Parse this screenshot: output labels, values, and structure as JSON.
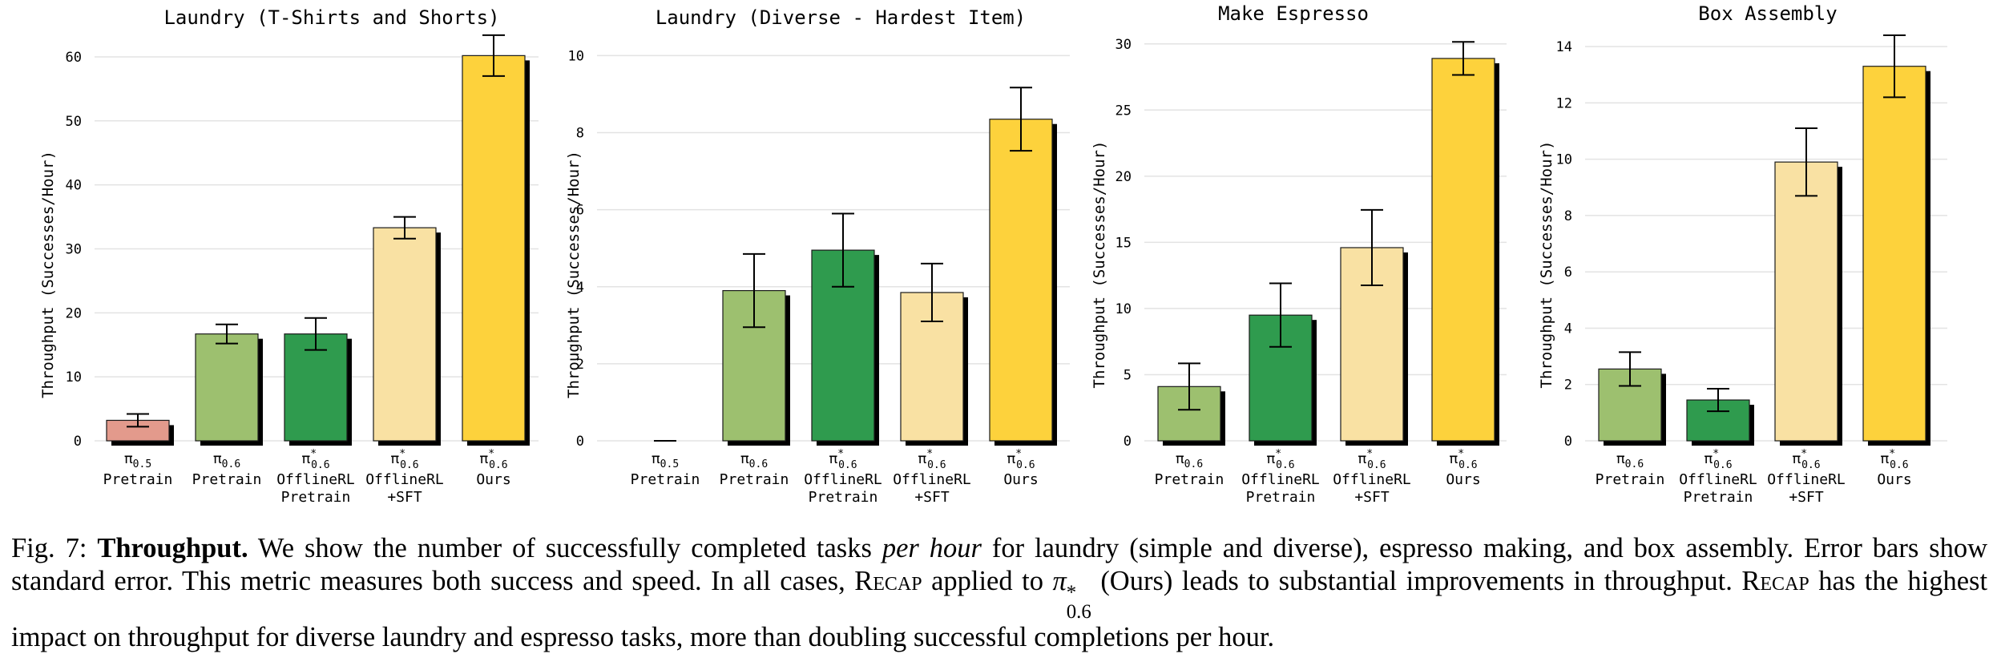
{
  "chart_data": [
    {
      "type": "bar",
      "title": "Laundry (T-Shirts and Shorts)",
      "ylabel": "Throughput (Successes/Hour)",
      "ylim": [
        0,
        62
      ],
      "yticks": [
        0,
        10,
        20,
        30,
        40,
        50,
        60
      ],
      "categories": [
        {
          "symbol": "π",
          "sub": "0.5",
          "star": false,
          "lines": [
            "Pretrain"
          ]
        },
        {
          "symbol": "π",
          "sub": "0.6",
          "star": false,
          "lines": [
            "Pretrain"
          ]
        },
        {
          "symbol": "π",
          "sub": "0.6",
          "star": true,
          "lines": [
            "OfflineRL",
            "Pretrain"
          ]
        },
        {
          "symbol": "π",
          "sub": "0.6",
          "star": true,
          "lines": [
            "OfflineRL",
            "+SFT"
          ]
        },
        {
          "symbol": "π",
          "sub": "0.6",
          "star": true,
          "lines": [
            "Ours"
          ]
        }
      ],
      "values": [
        3.2,
        16.7,
        16.7,
        33.3,
        60.2
      ],
      "errors": [
        1.0,
        1.5,
        2.5,
        1.7,
        3.2
      ],
      "colors": [
        "#e39a8c",
        "#9dc06f",
        "#2f9b4e",
        "#f9e1a3",
        "#fdd23c"
      ]
    },
    {
      "type": "bar",
      "title": "Laundry (Diverse - Hardest Item)",
      "ylabel": "Throughput (Successes/Hour)",
      "ylim": [
        0,
        10.3
      ],
      "yticks": [
        0,
        2,
        4,
        6,
        8,
        10
      ],
      "categories": [
        {
          "symbol": "π",
          "sub": "0.5",
          "star": false,
          "lines": [
            "Pretrain"
          ]
        },
        {
          "symbol": "π",
          "sub": "0.6",
          "star": false,
          "lines": [
            "Pretrain"
          ]
        },
        {
          "symbol": "π",
          "sub": "0.6",
          "star": true,
          "lines": [
            "OfflineRL",
            "Pretrain"
          ]
        },
        {
          "symbol": "π",
          "sub": "0.6",
          "star": true,
          "lines": [
            "OfflineRL",
            "+SFT"
          ]
        },
        {
          "symbol": "π",
          "sub": "0.6",
          "star": true,
          "lines": [
            "Ours"
          ]
        }
      ],
      "values": [
        0,
        3.9,
        4.95,
        3.85,
        8.35
      ],
      "errors": [
        0,
        0.95,
        0.95,
        0.75,
        0.82
      ],
      "colors": [
        "#e39a8c",
        "#9dc06f",
        "#2f9b4e",
        "#f9e1a3",
        "#fdd23c"
      ]
    },
    {
      "type": "bar",
      "title": "Make Espresso",
      "ylabel": "Throughput (Successes/Hour)",
      "ylim": [
        0,
        31.5
      ],
      "yticks": [
        0,
        5,
        10,
        15,
        20,
        25,
        30
      ],
      "categories": [
        {
          "symbol": "π",
          "sub": "0.6",
          "star": false,
          "lines": [
            "Pretrain"
          ]
        },
        {
          "symbol": "π",
          "sub": "0.6",
          "star": true,
          "lines": [
            "OfflineRL",
            "Pretrain"
          ]
        },
        {
          "symbol": "π",
          "sub": "0.6",
          "star": true,
          "lines": [
            "OfflineRL",
            "+SFT"
          ]
        },
        {
          "symbol": "π",
          "sub": "0.6",
          "star": true,
          "lines": [
            "Ours"
          ]
        }
      ],
      "values": [
        4.1,
        9.5,
        14.6,
        28.9
      ],
      "errors": [
        1.75,
        2.4,
        2.85,
        1.25
      ],
      "colors": [
        "#9dc06f",
        "#2f9b4e",
        "#f9e1a3",
        "#fdd23c"
      ]
    },
    {
      "type": "bar",
      "title": "Box Assembly",
      "ylabel": "Throughput (Successes/Hour)",
      "ylim": [
        0,
        14.8
      ],
      "yticks": [
        0,
        2,
        4,
        6,
        8,
        10,
        12,
        14
      ],
      "categories": [
        {
          "symbol": "π",
          "sub": "0.6",
          "star": false,
          "lines": [
            "Pretrain"
          ]
        },
        {
          "symbol": "π",
          "sub": "0.6",
          "star": true,
          "lines": [
            "OfflineRL",
            "Pretrain"
          ]
        },
        {
          "symbol": "π",
          "sub": "0.6",
          "star": true,
          "lines": [
            "OfflineRL",
            "+SFT"
          ]
        },
        {
          "symbol": "π",
          "sub": "0.6",
          "star": true,
          "lines": [
            "Ours"
          ]
        }
      ],
      "values": [
        2.55,
        1.45,
        9.9,
        13.3
      ],
      "errors": [
        0.6,
        0.4,
        1.2,
        1.1
      ],
      "colors": [
        "#9dc06f",
        "#2f9b4e",
        "#f9e1a3",
        "#fdd23c"
      ]
    }
  ],
  "caption": {
    "label": "Fig. 7:",
    "bold": "Throughput.",
    "text_1": "We show the number of successfully completed tasks",
    "italic": "per hour",
    "text_2": "for laundry (simple and diverse), espresso making, and box assembly. Error bars show standard error. This metric measures both success and speed. In all cases,",
    "recap_1": "Recap",
    "text_3": "applied to",
    "pi_symbol": "π",
    "pi_sub": "0.6",
    "pi_sup": "*",
    "text_4": "(Ours) leads to substantial improvements in throughput.",
    "recap_2": "Recap",
    "text_5": "has the highest impact on throughput for diverse laundry and espresso tasks, more than doubling successful completions per hour."
  }
}
